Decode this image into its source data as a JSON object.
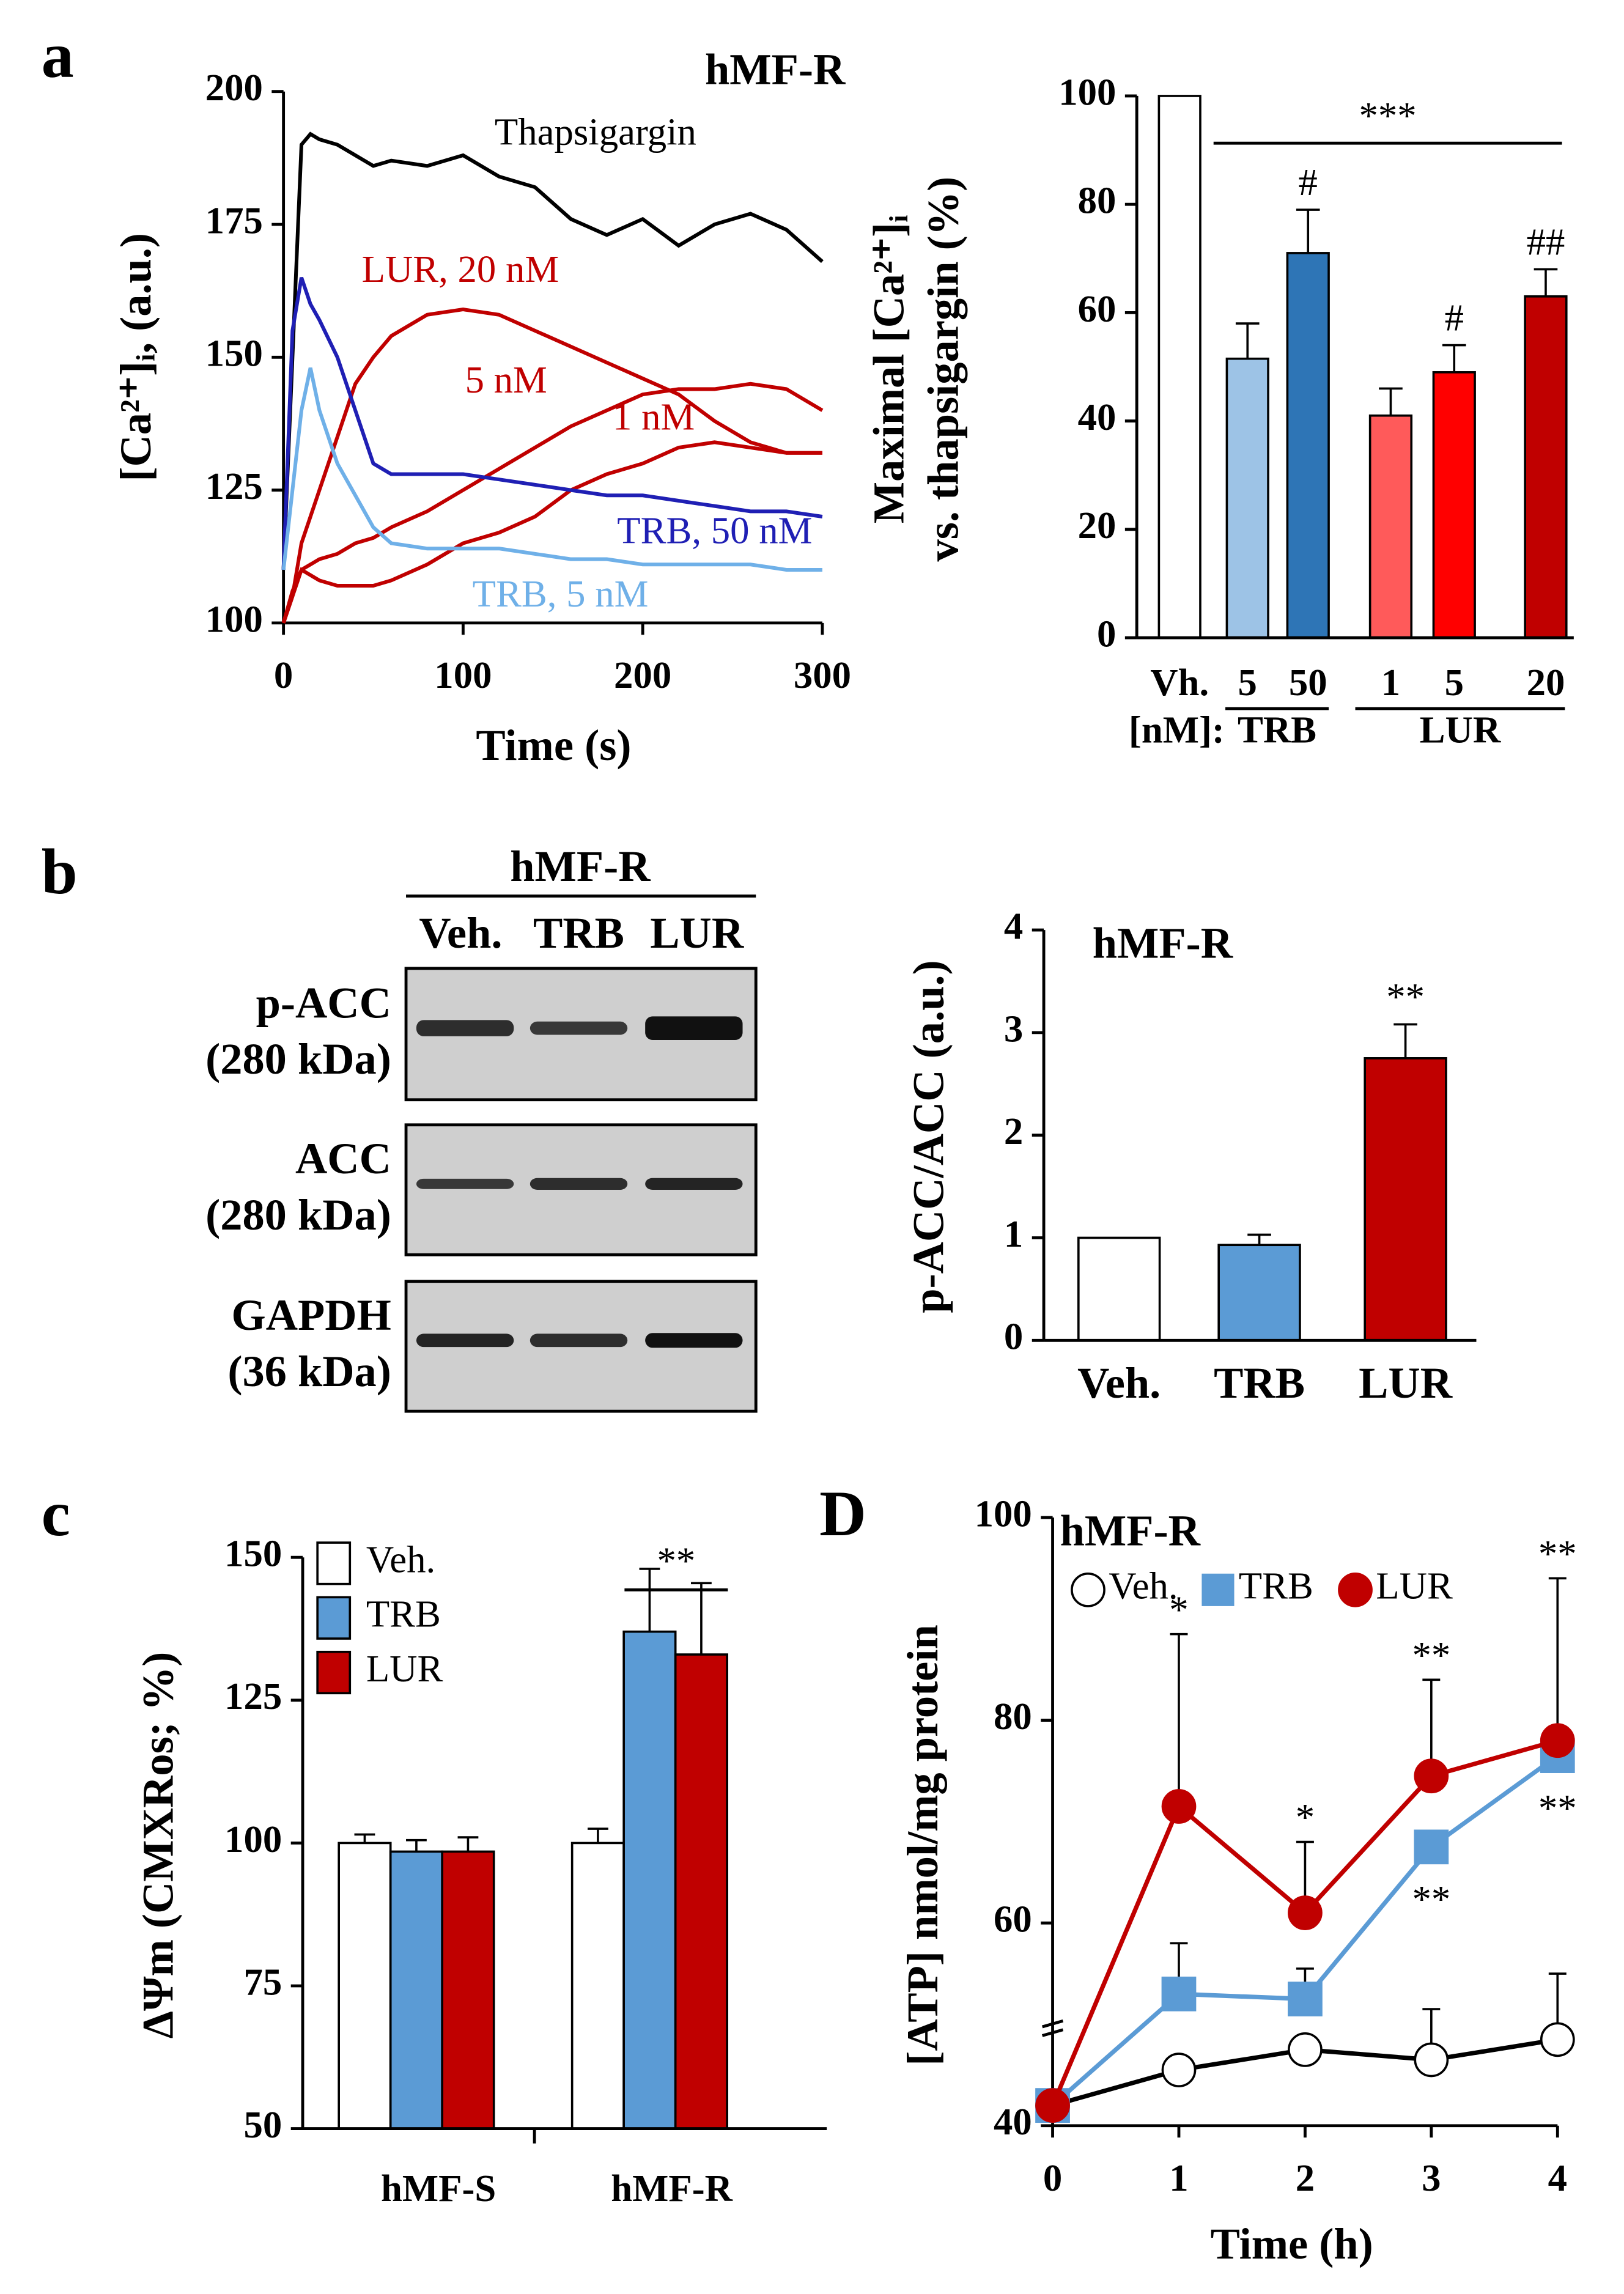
{
  "chart_data": [
    {
      "panel": "a",
      "type": "line",
      "title": "hMF-R",
      "xlabel": "Time (s)",
      "ylabel": "[Ca²⁺]ᵢ, (a.u.)",
      "x": [
        0,
        5,
        10,
        15,
        20,
        30,
        40,
        50,
        60,
        80,
        100,
        120,
        140,
        160,
        180,
        200,
        220,
        240,
        260,
        280,
        300
      ],
      "xlim": [
        0,
        300
      ],
      "xticks": [
        0,
        100,
        200,
        300
      ],
      "ylim": [
        100,
        200
      ],
      "yticks": [
        100,
        125,
        150,
        175,
        200
      ],
      "series": [
        {
          "name": "Thapsigargin",
          "color": "#000000",
          "values": [
            110,
            150,
            190,
            192,
            191,
            190,
            188,
            186,
            187,
            186,
            188,
            184,
            182,
            176,
            173,
            176,
            171,
            175,
            177,
            174,
            168
          ]
        },
        {
          "name": "LUR, 20 nM",
          "color": "#c00000",
          "values": [
            100,
            105,
            115,
            120,
            125,
            135,
            145,
            150,
            154,
            158,
            159,
            158,
            155,
            152,
            149,
            146,
            143,
            138,
            134,
            132,
            132
          ]
        },
        {
          "name": "5 nM",
          "color": "#c00000",
          "values": [
            100,
            105,
            110,
            111,
            112,
            113,
            115,
            116,
            118,
            121,
            125,
            129,
            133,
            137,
            140,
            143,
            144,
            144,
            145,
            144,
            140
          ]
        },
        {
          "name": "1 nM",
          "color": "#c00000",
          "values": [
            100,
            106,
            110,
            109,
            108,
            107,
            107,
            107,
            108,
            111,
            115,
            117,
            120,
            125,
            128,
            130,
            133,
            134,
            133,
            132,
            132
          ]
        },
        {
          "name": "TRB, 50 nM",
          "color": "#1f1fb4",
          "values": [
            110,
            155,
            165,
            160,
            157,
            150,
            140,
            130,
            128,
            128,
            128,
            127,
            126,
            125,
            124,
            124,
            123,
            122,
            121,
            121,
            120
          ]
        },
        {
          "name": "TRB, 5 nM",
          "color": "#6fb0e8",
          "values": [
            110,
            125,
            140,
            148,
            140,
            130,
            124,
            118,
            115,
            114,
            114,
            114,
            113,
            112,
            112,
            111,
            111,
            111,
            111,
            110,
            110
          ]
        }
      ]
    },
    {
      "type": "bar",
      "categories": [
        "Vh.",
        "5",
        "50",
        "1",
        "5",
        "20"
      ],
      "values": [
        100,
        51.5,
        71,
        41,
        49,
        63
      ],
      "errors": [
        0,
        6.5,
        8,
        5,
        5,
        5
      ],
      "colors": [
        "#ffffff",
        "#9dc3e6",
        "#2e75b6",
        "#ff5a5a",
        "#ff0000",
        "#c00000"
      ],
      "ylabel": [
        "Maximal [Ca²⁺]ᵢ",
        "vs. thapsigargin (%)"
      ],
      "ylim": [
        0,
        100
      ],
      "yticks": [
        0,
        20,
        40,
        60,
        80,
        100
      ],
      "groups": {
        "label": "[nM]:",
        "names": [
          "TRB",
          "LUR"
        ]
      },
      "significance": {
        "overall": "***",
        "marks": [
          null,
          null,
          "#",
          null,
          "#",
          "##"
        ]
      }
    },
    {
      "type": "bar",
      "title": "hMF-R",
      "categories": [
        "Veh.",
        "TRB",
        "LUR"
      ],
      "values": [
        1,
        0.93,
        2.75
      ],
      "errors": [
        0,
        0.1,
        0.33
      ],
      "colors": [
        "#ffffff",
        "#5b9bd5",
        "#c00000"
      ],
      "ylabel": [
        "p-ACC/ACC (a.u.)"
      ],
      "ylim": [
        0,
        4
      ],
      "yticks": [
        0,
        1,
        2,
        3,
        4
      ],
      "significance": {
        "marks": [
          null,
          null,
          "**"
        ]
      }
    },
    {
      "panel": "c",
      "type": "grouped_bar",
      "categories": [
        "hMF-S",
        "hMF-R"
      ],
      "ylabel": "ΔΨm (CMXRos; %)",
      "ylim": [
        50,
        150
      ],
      "yticks": [
        50,
        75,
        100,
        125,
        150
      ],
      "significance": "**",
      "series": [
        {
          "name": "Veh.",
          "color": "#ffffff",
          "values": [
            100,
            100
          ],
          "errors": [
            1.5,
            2.5
          ]
        },
        {
          "name": "TRB",
          "color": "#5b9bd5",
          "values": [
            98.5,
            137
          ],
          "errors": [
            2,
            11
          ]
        },
        {
          "name": "LUR",
          "color": "#c00000",
          "values": [
            98.5,
            133
          ],
          "errors": [
            2.5,
            12.5
          ]
        }
      ]
    },
    {
      "panel": "D",
      "type": "line",
      "title": "hMF-R",
      "xlabel": "Time (h)",
      "ylabel": "[ATP] nmol/mg protein",
      "x": [
        0,
        1,
        2,
        3,
        4
      ],
      "xlim": [
        0,
        4
      ],
      "xticks": [
        0,
        1,
        2,
        3,
        4
      ],
      "ylim": [
        40,
        100
      ],
      "yticks": [
        40,
        60,
        80,
        100
      ],
      "series": [
        {
          "name": "Veh.",
          "color": "#000000",
          "marker": "circle",
          "filled": false,
          "values": [
            42,
            45.5,
            47.5,
            46.5,
            48.5
          ],
          "errors": [
            null,
            null,
            null,
            5,
            6.5
          ],
          "significance": [
            null,
            null,
            null,
            null,
            null
          ]
        },
        {
          "name": "TRB",
          "color": "#5b9bd5",
          "marker": "square",
          "filled": true,
          "values": [
            42,
            53,
            52.5,
            67.5,
            76.5
          ],
          "errors": [
            null,
            5,
            3,
            null,
            null
          ],
          "significance": [
            null,
            null,
            null,
            "**",
            "**"
          ]
        },
        {
          "name": "LUR",
          "color": "#c00000",
          "marker": "circle",
          "filled": true,
          "values": [
            42,
            71.5,
            61,
            74.5,
            78
          ],
          "errors": [
            null,
            17,
            7,
            9.5,
            16
          ],
          "significance": [
            null,
            "*",
            "*",
            "**",
            "**"
          ]
        }
      ]
    }
  ],
  "blot": {
    "panel": "b",
    "title": "hMF-R",
    "lanes": [
      "Veh.",
      "TRB",
      "LUR"
    ],
    "rows": [
      {
        "name": "p-ACC",
        "size": "(280 kDa)"
      },
      {
        "name": "ACC",
        "size": "(280 kDa)"
      },
      {
        "name": "GAPDH",
        "size": "(36 kDa)"
      }
    ]
  }
}
